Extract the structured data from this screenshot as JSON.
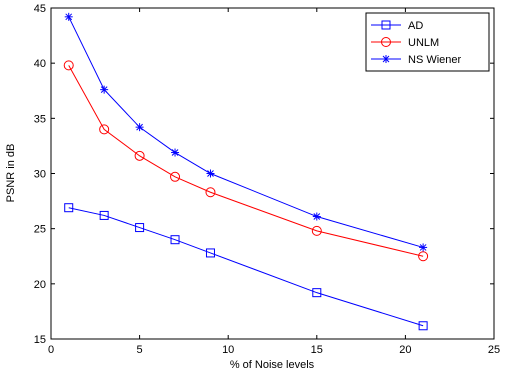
{
  "chart_data": {
    "type": "line",
    "title": "",
    "xlabel": "% of Noise levels",
    "ylabel": "PSNR in dB",
    "xlim": [
      0,
      25
    ],
    "ylim": [
      15,
      45
    ],
    "xticks": [
      0,
      5,
      10,
      15,
      20,
      25
    ],
    "yticks": [
      15,
      20,
      25,
      30,
      35,
      40,
      45
    ],
    "grid": false,
    "legend_position": "top-right",
    "x": [
      1,
      3,
      5,
      7,
      9,
      15,
      21
    ],
    "series": [
      {
        "name": "AD",
        "color": "#0000ff",
        "marker": "square",
        "values": [
          26.9,
          26.2,
          25.1,
          24.0,
          22.8,
          19.2,
          16.2
        ]
      },
      {
        "name": "UNLM",
        "color": "#ff0000",
        "marker": "circle",
        "values": [
          39.8,
          34.0,
          31.6,
          29.7,
          28.3,
          24.8,
          22.5
        ]
      },
      {
        "name": "NS Wiener",
        "color": "#0000ff",
        "marker": "star",
        "values": [
          44.2,
          37.6,
          34.2,
          31.9,
          30.0,
          26.1,
          23.3
        ]
      }
    ]
  }
}
